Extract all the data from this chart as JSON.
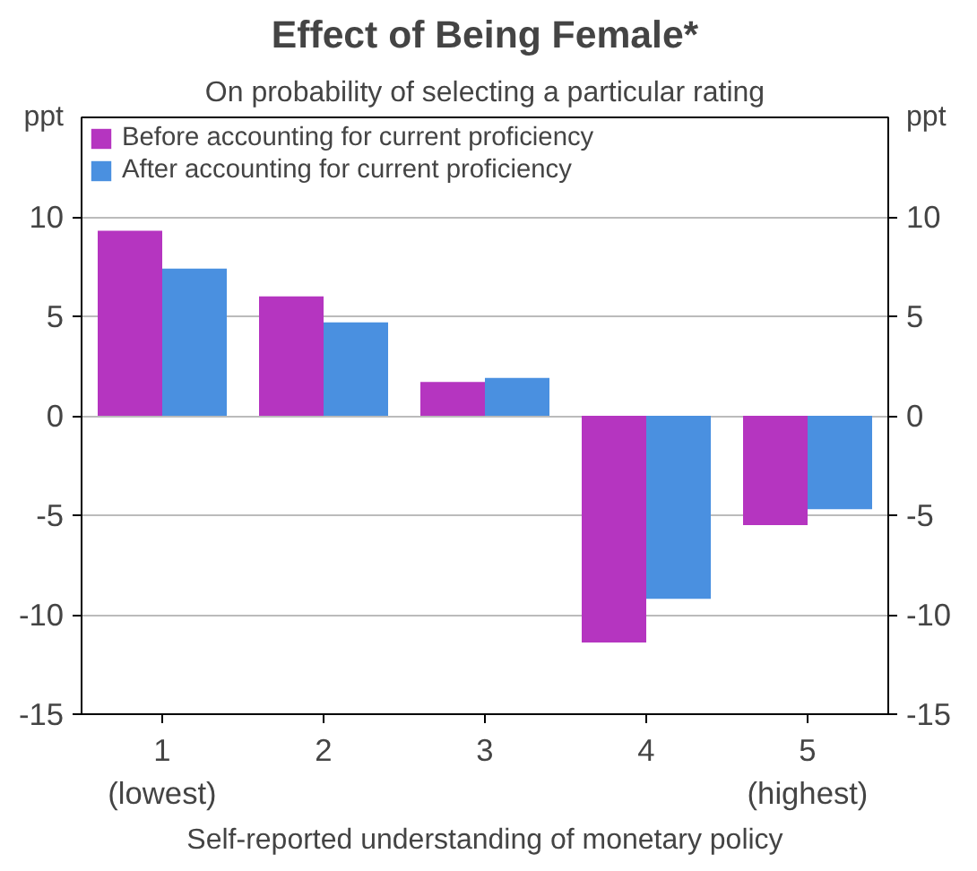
{
  "chart_data": {
    "type": "bar",
    "title": "Effect of Being Female*",
    "subtitle": "On probability of selecting a particular rating",
    "xlabel": "Self-reported understanding of monetary policy",
    "ylabel": "ppt",
    "y2label": "ppt",
    "categories": [
      "1\n(lowest)",
      "2",
      "3",
      "4",
      "5\n(highest)"
    ],
    "series": [
      {
        "name": "Before accounting for current proficiency",
        "color": "#b535c0",
        "values": [
          9.3,
          6.0,
          1.7,
          -11.4,
          -5.5
        ]
      },
      {
        "name": "After accounting for current proficiency",
        "color": "#4a90e0",
        "values": [
          7.4,
          4.7,
          1.9,
          -9.2,
          -4.7
        ]
      }
    ],
    "ylim": [
      -15,
      15
    ],
    "yticks": [
      -15,
      -10,
      -5,
      0,
      5,
      10
    ],
    "y2lim": [
      -15,
      15
    ],
    "y2ticks": [
      -15,
      -10,
      -5,
      0,
      5,
      10
    ],
    "grid": "y",
    "legend": "top left"
  }
}
